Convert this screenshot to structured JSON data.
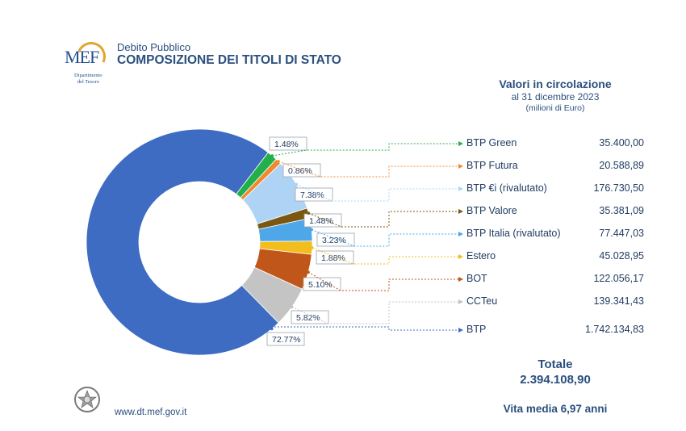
{
  "header": {
    "subtitle": "Debito Pubblico",
    "title": "COMPOSIZIONE DEI TITOLI DI STATO",
    "logo_text": "MEF",
    "logo_dept_line1": "Dipartimento",
    "logo_dept_line2": "del Tesoro"
  },
  "legend_header": {
    "title": "Valori in circolazione",
    "date": "al 31 dicembre 2023",
    "unit": "(milioni di Euro)"
  },
  "totals": {
    "label": "Totale",
    "value": "2.394.108,90",
    "vita_media": "Vita media 6,97 anni"
  },
  "footer": {
    "url": "www.dt.mef.gov.it",
    "emblem_icon": "italian-republic-emblem-icon"
  },
  "chart_data": {
    "type": "donut",
    "title": "COMPOSIZIONE DEI TITOLI DI STATO",
    "series": [
      {
        "name": "BTP Green",
        "value": 35400.0,
        "value_label": "35.400,00",
        "pct_label": "1.48%",
        "color": "#22b04b"
      },
      {
        "name": "BTP Futura",
        "value": 20588.89,
        "value_label": "20.588,89",
        "pct_label": "0.86%",
        "color": "#ef8a30"
      },
      {
        "name": "BTP €i (rivalutato)",
        "value": 176730.5,
        "value_label": "176.730,50",
        "pct_label": "7.38%",
        "color": "#aed3f5"
      },
      {
        "name": "BTP Valore",
        "value": 35381.09,
        "value_label": "35.381,09",
        "pct_label": "1.48%",
        "color": "#7a5812"
      },
      {
        "name": "BTP Italia (rivalutato)",
        "value": 77447.03,
        "value_label": "77.447,03",
        "pct_label": "3.23%",
        "color": "#4ea7e8"
      },
      {
        "name": "Estero",
        "value": 45028.95,
        "value_label": "45.028,95",
        "pct_label": "1.88%",
        "color": "#f3be1d"
      },
      {
        "name": "BOT",
        "value": 122056.17,
        "value_label": "122.056,17",
        "pct_label": "5.10%",
        "color": "#c1561a"
      },
      {
        "name": "CCTeu",
        "value": 139341.43,
        "value_label": "139.341,43",
        "pct_label": "5.82%",
        "color": "#c4c4c4"
      },
      {
        "name": "BTP",
        "value": 1742134.83,
        "value_label": "1.742.134,83",
        "pct_label": "72.77%",
        "color": "#3d6cc2"
      }
    ],
    "total": 2394108.9,
    "legend_placement": "right"
  }
}
